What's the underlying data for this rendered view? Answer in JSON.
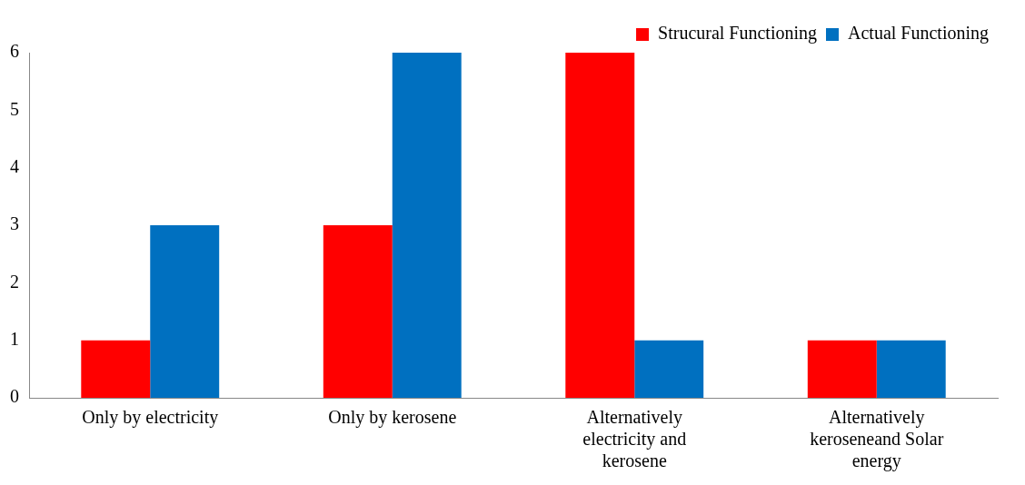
{
  "chart_data": {
    "type": "bar",
    "categories": [
      "Only by electricity",
      "Only by kerosene",
      "Alternatively electricity and kerosene",
      "Alternatively keroseneand Solar energy"
    ],
    "series": [
      {
        "name": "Strucural Functioning",
        "color": "#ff0000",
        "values": [
          1,
          3,
          6,
          1
        ]
      },
      {
        "name": "Actual Functioning",
        "color": "#0070c0",
        "values": [
          3,
          6,
          1,
          1
        ]
      }
    ],
    "ylim": [
      0,
      6
    ],
    "yticks": [
      0,
      1,
      2,
      3,
      4,
      5,
      6
    ],
    "grid": false,
    "legend": "top right"
  }
}
